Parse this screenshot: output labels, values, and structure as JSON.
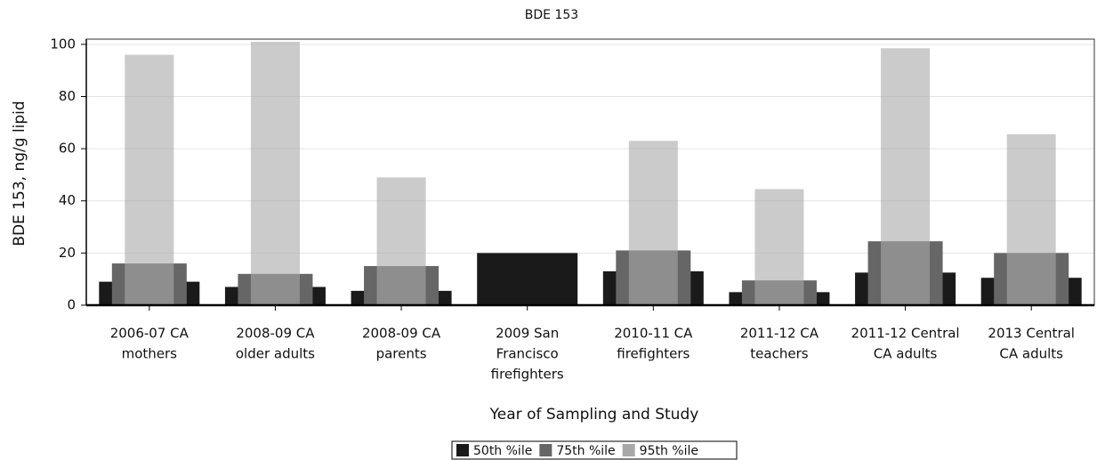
{
  "chart_data": {
    "type": "bar",
    "title": "BDE 153",
    "y_label": "BDE 153, ng/g lipid",
    "x_label": "Year of Sampling and Study",
    "categories": [
      [
        "2006-07 CA",
        "mothers"
      ],
      [
        "2008-09 CA",
        "older adults"
      ],
      [
        "2008-09 CA",
        "parents"
      ],
      [
        "2009 San",
        "Francisco",
        "firefighters"
      ],
      [
        "2010-11 CA",
        "firefighters"
      ],
      [
        "2011-12 CA",
        "teachers"
      ],
      [
        "2011-12 Central",
        "CA adults"
      ],
      [
        "2013 Central",
        "CA adults"
      ]
    ],
    "series": [
      {
        "name": "50th %ile",
        "color": "#1a1a1a",
        "values": [
          9,
          7,
          5.5,
          20,
          13,
          5,
          12.5,
          10.5
        ]
      },
      {
        "name": "75th %ile",
        "color": "#666666",
        "values": [
          16,
          12,
          15,
          null,
          21,
          9.5,
          24.5,
          20
        ]
      },
      {
        "name": "95th %ile",
        "color": "#a8a8a8",
        "values": [
          96,
          101,
          49,
          null,
          63,
          44.5,
          98.5,
          65.5
        ]
      }
    ],
    "ylim": [
      0,
      102
    ],
    "yticks": [
      0,
      20,
      40,
      60,
      80,
      100
    ],
    "grid": true,
    "legend": "bottom"
  }
}
